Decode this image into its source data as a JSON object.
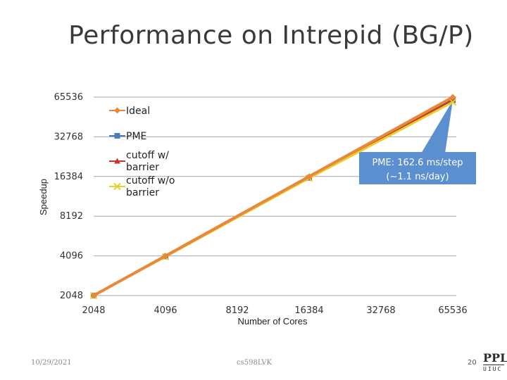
{
  "slide": {
    "title": "Performance on Intrepid (BG/P)",
    "footer_date": "10/29/2021",
    "footer_center": "cs598LVK",
    "page_number": "20",
    "logo_top": "PPL",
    "logo_bottom": "UIUC"
  },
  "chart_data": {
    "type": "line",
    "title": "",
    "xlabel": "Number of Cores",
    "ylabel": "Speedup",
    "x_scale": "log2",
    "y_scale": "log2",
    "x_ticks": [
      "2048",
      "4096",
      "8192",
      "16384",
      "32768",
      "65536"
    ],
    "y_ticks": [
      "2048",
      "4096",
      "8192",
      "16384",
      "32768",
      "65536"
    ],
    "xlim": [
      2048,
      65536
    ],
    "ylim": [
      2048,
      65536
    ],
    "grid": "horizontal",
    "legend_position": "top-left",
    "series": [
      {
        "name": "Ideal",
        "color": "#e8883a",
        "marker": "diamond",
        "x": [
          2048,
          4096,
          16384,
          65536
        ],
        "y": [
          2048,
          4096,
          16384,
          65536
        ]
      },
      {
        "name": "PME",
        "color": "#4a7ebb",
        "marker": "square",
        "x": [
          2048,
          4096,
          16384,
          65536
        ],
        "y": [
          2048,
          4050,
          16000,
          62000
        ]
      },
      {
        "name": "cutoff w/ barrier",
        "color": "#c0392b",
        "marker": "triangle",
        "x": [
          2048,
          4096,
          16384,
          65536
        ],
        "y": [
          2048,
          4060,
          16100,
          63000
        ]
      },
      {
        "name": "cutoff w/o barrier",
        "color": "#e6d02a",
        "marker": "x",
        "x": [
          2048,
          4096,
          16384,
          65536
        ],
        "y": [
          2048,
          4030,
          15900,
          60000
        ]
      }
    ],
    "annotation": {
      "line1": "PME: 162.6 ms/step",
      "line2": "(~1.1 ns/day)",
      "fill": "#5b8fd0"
    }
  }
}
